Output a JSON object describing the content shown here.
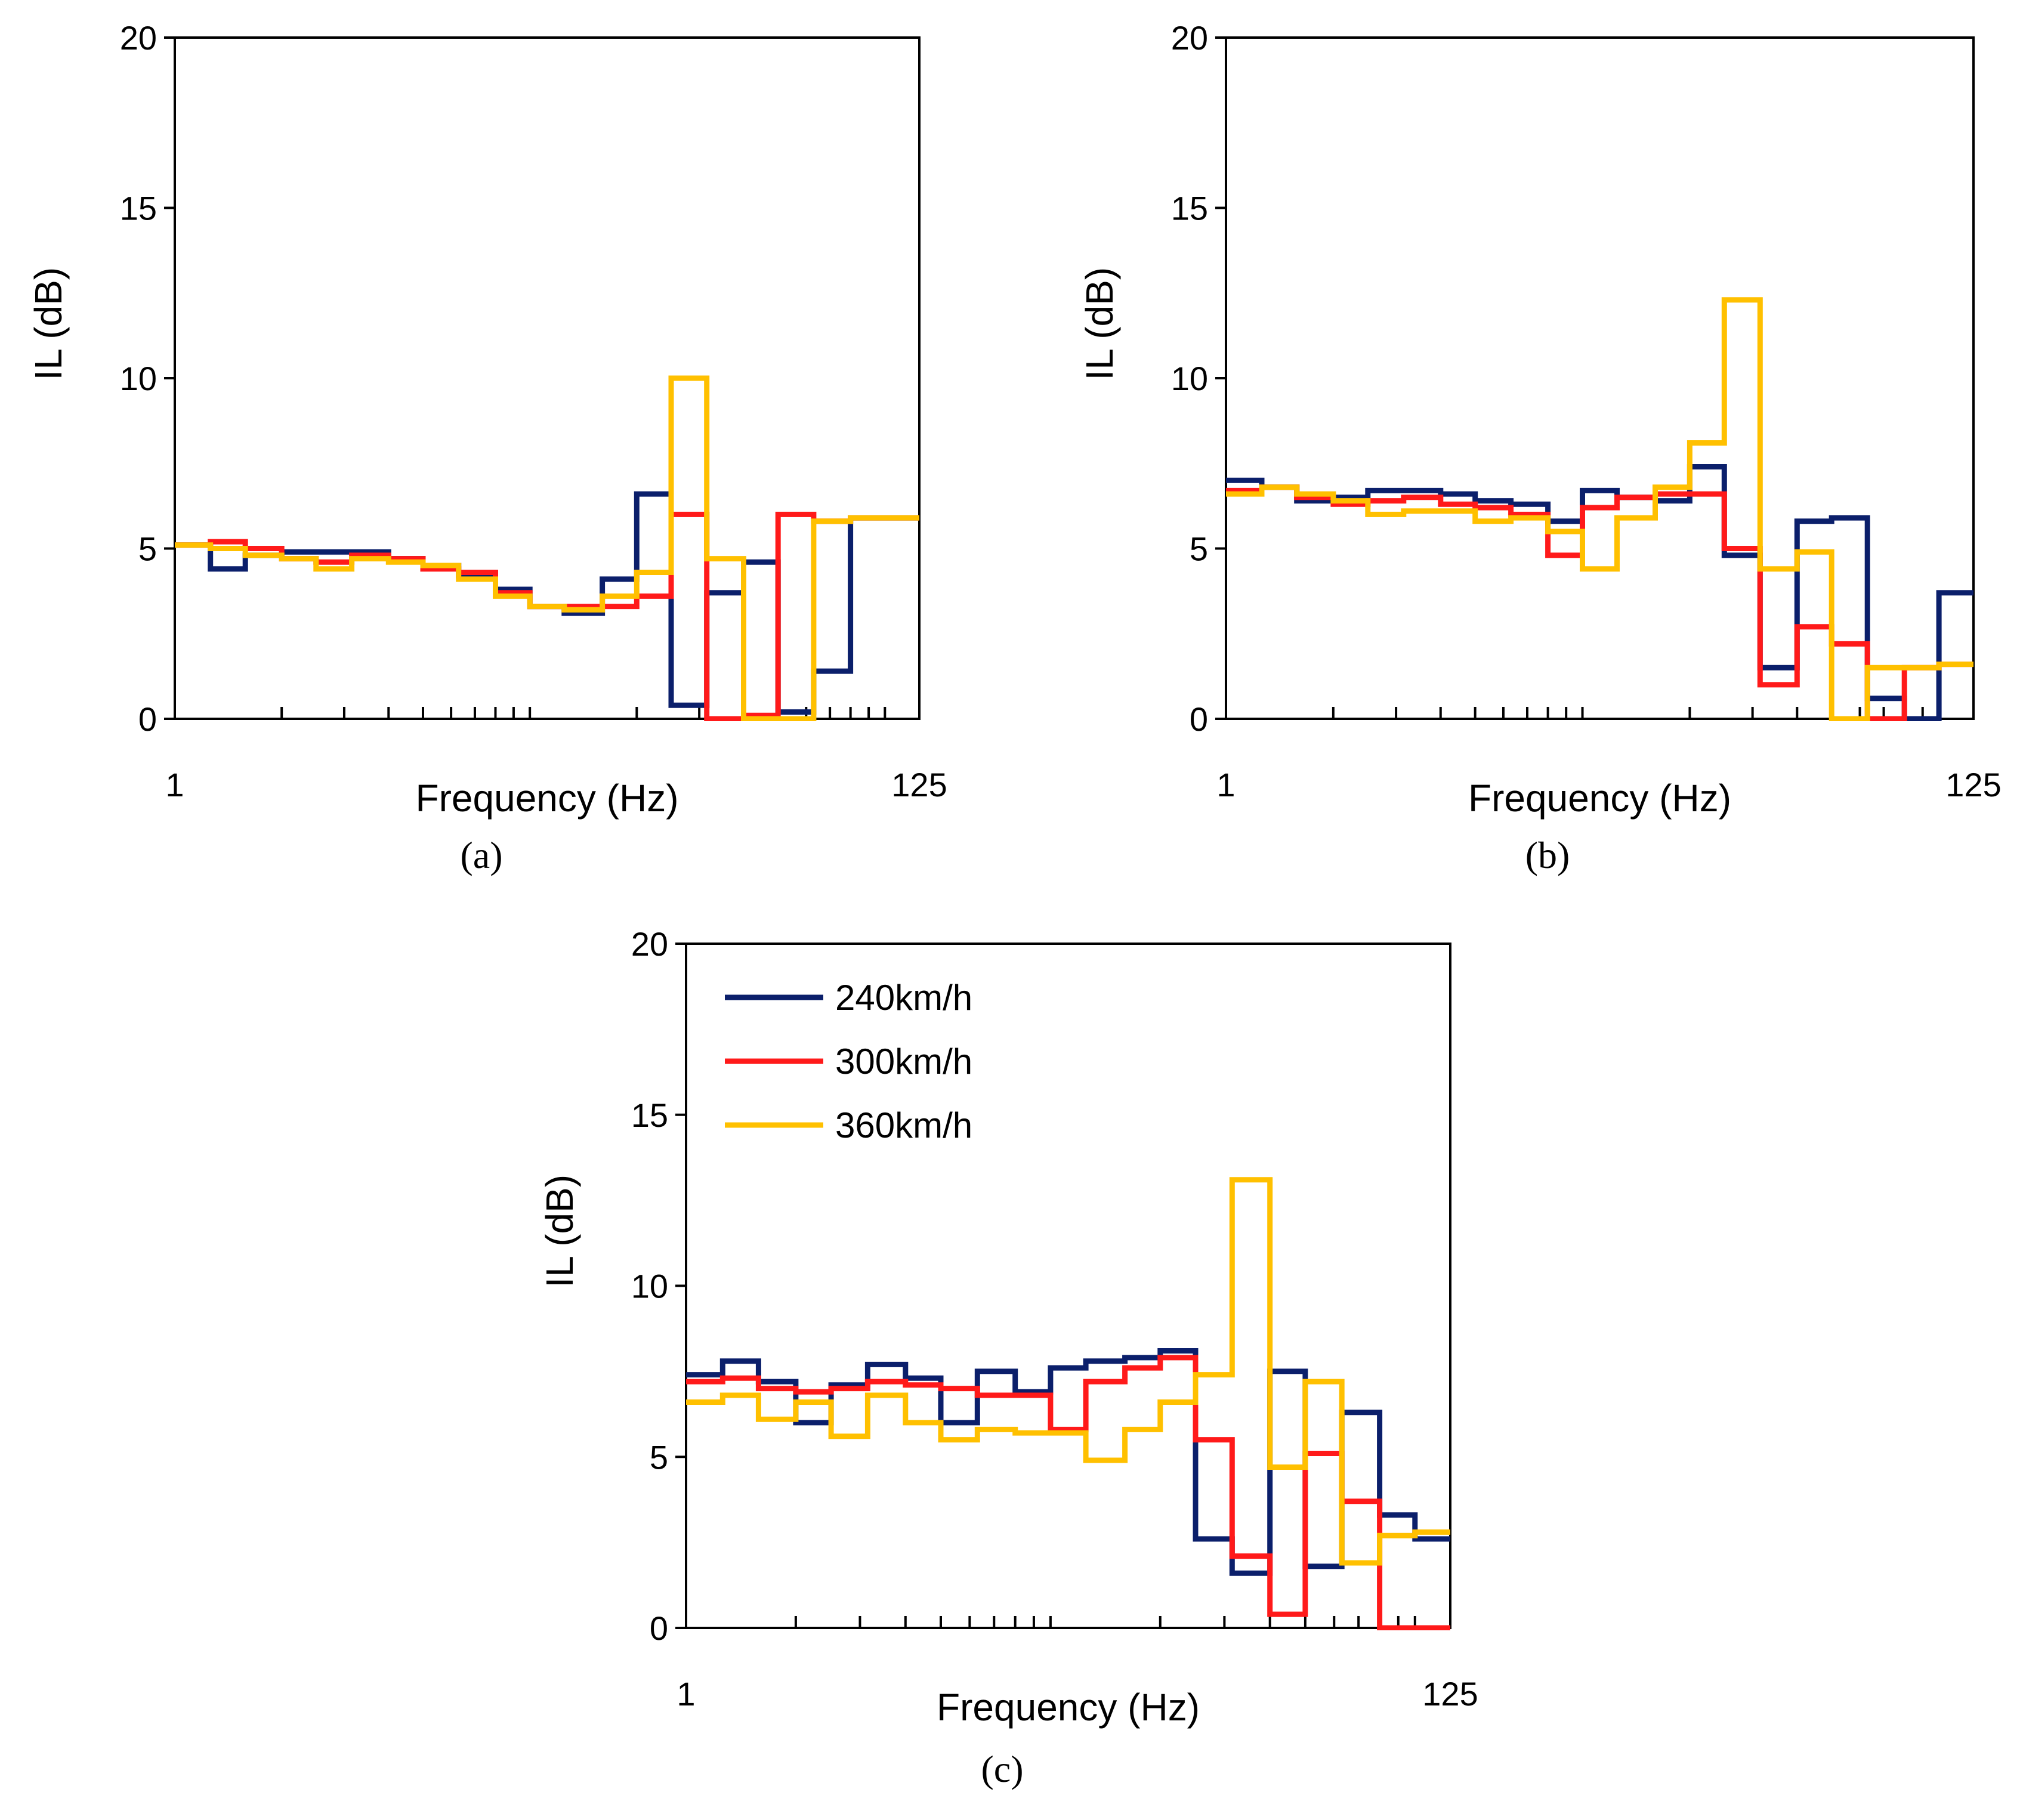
{
  "figure": {
    "colors": {
      "240km/h": "#0b1f6b",
      "300km/h": "#ff1a1a",
      "360km/h": "#ffc000"
    }
  },
  "chart_data": [
    {
      "panel": "a",
      "panel_label": "(a)",
      "type": "line",
      "step": true,
      "xscale": "log",
      "xlim": [
        1,
        125
      ],
      "ylim": [
        0,
        20
      ],
      "xticks": [
        1,
        125
      ],
      "xticklabels": [
        "1",
        "125"
      ],
      "yticks": [
        0,
        5,
        10,
        15,
        20
      ],
      "yticklabels": [
        "0",
        "5",
        "10",
        "15",
        "20"
      ],
      "xlabel": "Frequency (Hz)",
      "ylabel": "IL (dB)",
      "bin_edges": [
        1,
        1.26,
        1.58,
        2,
        2.5,
        3.15,
        4,
        5,
        6.3,
        8,
        10,
        12.5,
        16,
        20,
        25,
        31.5,
        40,
        50,
        63,
        80,
        100,
        125
      ],
      "series": [
        {
          "name": "240km/h",
          "color": "#0b1f6b",
          "values": [
            5.1,
            4.4,
            4.8,
            4.9,
            4.9,
            4.9,
            4.7,
            4.5,
            4.2,
            3.8,
            3.3,
            3.1,
            4.1,
            6.6,
            0.4,
            3.7,
            4.6,
            0.2,
            1.4,
            5.9,
            5.9
          ]
        },
        {
          "name": "300km/h",
          "color": "#ff1a1a",
          "values": [
            5.1,
            5.2,
            5.0,
            4.7,
            4.6,
            4.8,
            4.7,
            4.4,
            4.3,
            3.7,
            3.3,
            3.3,
            3.3,
            3.6,
            6.0,
            0.0,
            0.1,
            6.0,
            5.8,
            5.9,
            5.9
          ]
        },
        {
          "name": "360km/h",
          "color": "#ffc000",
          "values": [
            5.1,
            5.0,
            4.8,
            4.7,
            4.4,
            4.7,
            4.6,
            4.5,
            4.1,
            3.6,
            3.3,
            3.2,
            3.6,
            4.3,
            10.0,
            4.7,
            0.0,
            0.0,
            5.8,
            5.9,
            5.9
          ]
        }
      ]
    },
    {
      "panel": "b",
      "panel_label": "(b)",
      "type": "line",
      "step": true,
      "xscale": "log",
      "xlim": [
        1,
        125
      ],
      "ylim": [
        0,
        20
      ],
      "xticks": [
        1,
        125
      ],
      "xticklabels": [
        "1",
        "125"
      ],
      "yticks": [
        0,
        5,
        10,
        15,
        20
      ],
      "yticklabels": [
        "0",
        "5",
        "10",
        "15",
        "20"
      ],
      "xlabel": "Frequency (Hz)",
      "ylabel": "IL (dB)",
      "bin_edges": [
        1,
        1.26,
        1.58,
        2,
        2.5,
        3.15,
        4,
        5,
        6.3,
        8,
        10,
        12.5,
        16,
        20,
        25,
        31.5,
        40,
        50,
        63,
        80,
        100,
        125
      ],
      "series": [
        {
          "name": "240km/h",
          "color": "#0b1f6b",
          "values": [
            7.0,
            6.8,
            6.4,
            6.5,
            6.7,
            6.7,
            6.6,
            6.4,
            6.3,
            5.8,
            6.7,
            6.5,
            6.4,
            7.4,
            4.8,
            1.5,
            5.8,
            5.9,
            0.6,
            0.0,
            3.7
          ]
        },
        {
          "name": "300km/h",
          "color": "#ff1a1a",
          "values": [
            6.7,
            6.8,
            6.5,
            6.3,
            6.4,
            6.5,
            6.3,
            6.2,
            6.0,
            4.8,
            6.2,
            6.5,
            6.6,
            6.6,
            5.0,
            1.0,
            2.7,
            2.2,
            0.0,
            1.5,
            1.6
          ]
        },
        {
          "name": "360km/h",
          "color": "#ffc000",
          "values": [
            6.6,
            6.8,
            6.6,
            6.4,
            6.0,
            6.1,
            6.1,
            5.8,
            5.9,
            5.5,
            4.4,
            5.9,
            6.8,
            8.1,
            12.3,
            4.4,
            4.9,
            0.0,
            1.5,
            1.5,
            1.6
          ]
        }
      ]
    },
    {
      "panel": "c",
      "panel_label": "(c)",
      "type": "line",
      "step": true,
      "xscale": "log",
      "xlim": [
        1,
        125
      ],
      "ylim": [
        0,
        20
      ],
      "xticks": [
        1,
        125
      ],
      "xticklabels": [
        "1",
        "125"
      ],
      "yticks": [
        0,
        5,
        10,
        15,
        20
      ],
      "yticklabels": [
        "0",
        "5",
        "10",
        "15",
        "20"
      ],
      "xlabel": "Frequency (Hz)",
      "ylabel": "IL (dB)",
      "legend": {
        "position": "top-left",
        "entries": [
          "240km/h",
          "300km/h",
          "360km/h"
        ]
      },
      "bin_edges": [
        1,
        1.26,
        1.58,
        2,
        2.5,
        3.15,
        4,
        5,
        6.3,
        8,
        10,
        12.5,
        16,
        20,
        25,
        31.5,
        40,
        50,
        63,
        80,
        100,
        125
      ],
      "series": [
        {
          "name": "240km/h",
          "color": "#0b1f6b",
          "values": [
            7.4,
            7.8,
            7.2,
            6.0,
            7.1,
            7.7,
            7.3,
            6.0,
            7.5,
            6.9,
            7.6,
            7.8,
            7.9,
            8.1,
            2.6,
            1.6,
            7.5,
            1.8,
            6.3,
            3.3,
            2.6
          ]
        },
        {
          "name": "300km/h",
          "color": "#ff1a1a",
          "values": [
            7.2,
            7.3,
            7.0,
            6.9,
            7.0,
            7.2,
            7.1,
            7.0,
            6.8,
            6.8,
            5.8,
            7.2,
            7.6,
            7.9,
            5.5,
            2.1,
            0.4,
            5.1,
            3.7,
            0.0,
            0.0
          ]
        },
        {
          "name": "360km/h",
          "color": "#ffc000",
          "values": [
            6.6,
            6.8,
            6.1,
            6.6,
            5.6,
            6.8,
            6.0,
            5.5,
            5.8,
            5.7,
            5.7,
            4.9,
            5.8,
            6.6,
            7.4,
            13.1,
            4.7,
            7.2,
            1.9,
            2.7,
            2.8
          ]
        }
      ]
    }
  ]
}
